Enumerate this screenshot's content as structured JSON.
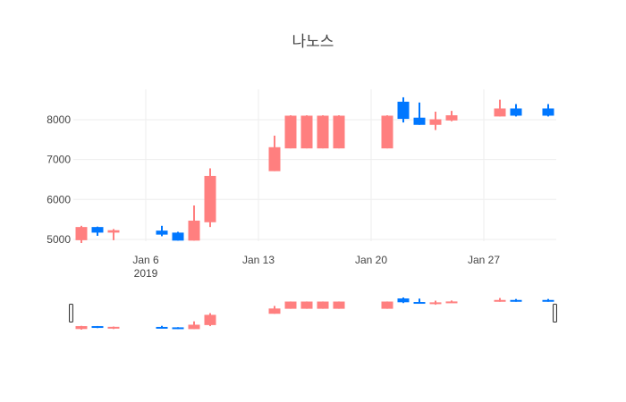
{
  "chart_data": {
    "type": "candlestick",
    "title": "나노스",
    "xlabel": "",
    "ylabel": "",
    "x_ticks": [
      {
        "date": "2019-01-06",
        "label": "Jan 6",
        "sublabel": "2019"
      },
      {
        "date": "2019-01-13",
        "label": "Jan 13"
      },
      {
        "date": "2019-01-20",
        "label": "Jan 20"
      },
      {
        "date": "2019-01-27",
        "label": "Jan 27"
      }
    ],
    "y_ticks": [
      5000,
      6000,
      7000,
      8000
    ],
    "y_tick_labels": [
      "5000",
      "6000",
      "7000",
      "8000"
    ],
    "xlim": [
      "2019-01-01 12:00",
      "2019-01-31 12:00"
    ],
    "ylim": [
      4955,
      8760
    ],
    "grid": true,
    "rangeslider": true,
    "colors": {
      "increasing": "#ff7f7f",
      "decreasing": "#0077ff"
    },
    "series": [
      {
        "date": "2019-01-02",
        "open": 4980,
        "high": 5340,
        "low": 4910,
        "close": 5310
      },
      {
        "date": "2019-01-03",
        "open": 5310,
        "high": 5320,
        "low": 5090,
        "close": 5170
      },
      {
        "date": "2019-01-04",
        "open": 5170,
        "high": 5260,
        "low": 4980,
        "close": 5230
      },
      {
        "date": "2019-01-07",
        "open": 5220,
        "high": 5340,
        "low": 5080,
        "close": 5120
      },
      {
        "date": "2019-01-08",
        "open": 5170,
        "high": 5190,
        "low": 4970,
        "close": 4970
      },
      {
        "date": "2019-01-09",
        "open": 4970,
        "high": 5850,
        "low": 4970,
        "close": 5470
      },
      {
        "date": "2019-01-10",
        "open": 5430,
        "high": 6780,
        "low": 5310,
        "close": 6590
      },
      {
        "date": "2019-01-14",
        "open": 6710,
        "high": 7600,
        "low": 6710,
        "close": 7310
      },
      {
        "date": "2019-01-15",
        "open": 7280,
        "high": 8110,
        "low": 7280,
        "close": 8100
      },
      {
        "date": "2019-01-16",
        "open": 7280,
        "high": 8110,
        "low": 7280,
        "close": 8100
      },
      {
        "date": "2019-01-17",
        "open": 7280,
        "high": 8110,
        "low": 7280,
        "close": 8100
      },
      {
        "date": "2019-01-18",
        "open": 7280,
        "high": 8110,
        "low": 7280,
        "close": 8100
      },
      {
        "date": "2019-01-21",
        "open": 7280,
        "high": 8110,
        "low": 7280,
        "close": 8100
      },
      {
        "date": "2019-01-22",
        "open": 8450,
        "high": 8560,
        "low": 7930,
        "close": 8020
      },
      {
        "date": "2019-01-23",
        "open": 8050,
        "high": 8430,
        "low": 7870,
        "close": 7870
      },
      {
        "date": "2019-01-24",
        "open": 7870,
        "high": 8200,
        "low": 7740,
        "close": 8010
      },
      {
        "date": "2019-01-25",
        "open": 7980,
        "high": 8220,
        "low": 7960,
        "close": 8110
      },
      {
        "date": "2019-01-28",
        "open": 8080,
        "high": 8500,
        "low": 8080,
        "close": 8280
      },
      {
        "date": "2019-01-29",
        "open": 8280,
        "high": 8390,
        "low": 8080,
        "close": 8100
      },
      {
        "date": "2019-01-31",
        "open": 8280,
        "high": 8390,
        "low": 8080,
        "close": 8100
      }
    ]
  }
}
